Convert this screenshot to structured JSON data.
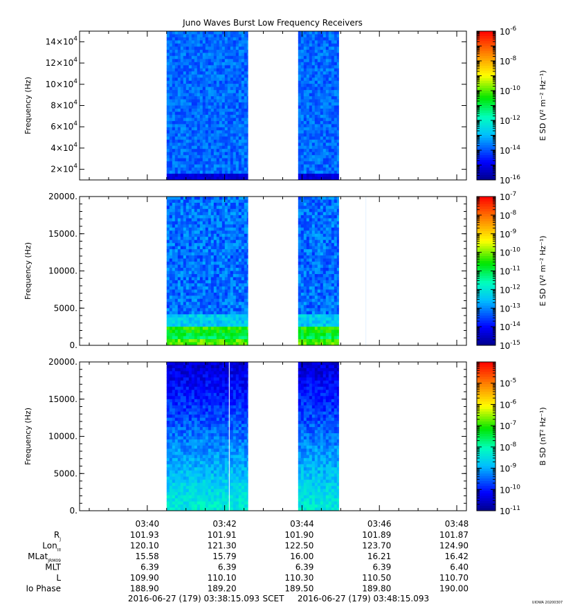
{
  "chart_data": {
    "type": "heatmap",
    "title": "Juno Waves Burst Low Frequency Receivers",
    "x_range_minutes": [
      38.25,
      48.25
    ],
    "time_ticks": [
      "03:40",
      "03:42",
      "03:44",
      "03:46",
      "03:48"
    ],
    "time_tick_minutes": [
      40,
      42,
      44,
      46,
      48
    ],
    "data_intervals_minutes": [
      [
        40.5,
        42.6
      ],
      [
        43.9,
        44.95
      ]
    ],
    "panels": [
      {
        "ylabel": "Frequency (Hz)",
        "ylim": [
          10000,
          150000
        ],
        "yticks": [
          {
            "value": 20000,
            "mant": "2×10",
            "exp": "4"
          },
          {
            "value": 40000,
            "mant": "4×10",
            "exp": "4"
          },
          {
            "value": 60000,
            "mant": "6×10",
            "exp": "4"
          },
          {
            "value": 80000,
            "mant": "8×10",
            "exp": "4"
          },
          {
            "value": 100000,
            "mant": "10×10",
            "exp": "4"
          },
          {
            "value": 120000,
            "mant": "12×10",
            "exp": "4"
          },
          {
            "value": 140000,
            "mant": "14×10",
            "exp": "4"
          }
        ],
        "colorbar": {
          "label": "E SD (V² m⁻² Hz⁻¹)",
          "log_range": [
            -16,
            -6
          ],
          "tick_exps": [
            "-6",
            "-8",
            "-10",
            "-12",
            "-14",
            "-16"
          ]
        },
        "profile": "uniform",
        "line_minute": null,
        "background_log": -13.8
      },
      {
        "ylabel": "Frequency (Hz)",
        "ylim": [
          0,
          20000
        ],
        "yticks": [
          {
            "value": 0,
            "label": "0."
          },
          {
            "value": 5000,
            "label": "5000."
          },
          {
            "value": 10000,
            "label": "10000."
          },
          {
            "value": 15000,
            "label": "15000."
          },
          {
            "value": 20000,
            "label": "20000."
          }
        ],
        "colorbar": {
          "label": "E SD (V² m⁻² Hz⁻¹)",
          "log_range": [
            -15,
            -7
          ],
          "tick_exps": [
            "-7",
            "-8",
            "-9",
            "-10",
            "-11",
            "-12",
            "-13",
            "-14",
            "-15"
          ]
        },
        "profile": "low_band",
        "line_minute": 45.65,
        "background_log": -13.2
      },
      {
        "ylabel": "Frequency (Hz)",
        "ylim": [
          0,
          20000
        ],
        "yticks": [
          {
            "value": 0,
            "label": "0."
          },
          {
            "value": 5000,
            "label": "5000."
          },
          {
            "value": 10000,
            "label": "10000."
          },
          {
            "value": 15000,
            "label": "15000."
          },
          {
            "value": 20000,
            "label": "20000."
          }
        ],
        "colorbar": {
          "label": "B SD (nT² Hz⁻¹)",
          "log_range": [
            -11,
            -4
          ],
          "tick_exps": [
            "-5",
            "-6",
            "-7",
            "-8",
            "-9",
            "-10",
            "-11"
          ]
        },
        "profile": "gradient",
        "line_minute": 42.12,
        "background_log": -10.3
      }
    ],
    "ephemeris": {
      "rows": [
        {
          "label": "R",
          "sub": "J",
          "values": [
            "101.93",
            "101.91",
            "101.90",
            "101.89",
            "101.87"
          ]
        },
        {
          "label": "Lon",
          "sub": "III",
          "values": [
            "120.10",
            "121.30",
            "122.50",
            "123.70",
            "124.90"
          ]
        },
        {
          "label": "MLat",
          "sub": "JRM09",
          "values": [
            "15.58",
            "15.79",
            "16.00",
            "16.21",
            "16.42"
          ]
        },
        {
          "label": "MLT",
          "sub": "",
          "values": [
            "6.39",
            "6.39",
            "6.39",
            "6.39",
            "6.40"
          ]
        },
        {
          "label": "L",
          "sub": "",
          "values": [
            "109.90",
            "110.10",
            "110.30",
            "110.50",
            "110.70"
          ]
        },
        {
          "label": "Io Phase",
          "sub": "",
          "values": [
            "188.90",
            "189.20",
            "189.50",
            "189.80",
            "190.00"
          ]
        }
      ]
    },
    "footer": {
      "start": "2016-06-27 (179) 03:38:15.093",
      "label": "SCET",
      "end": "2016-06-27 (179) 03:48:15.093"
    },
    "credit": "UIOWA 20200307"
  }
}
